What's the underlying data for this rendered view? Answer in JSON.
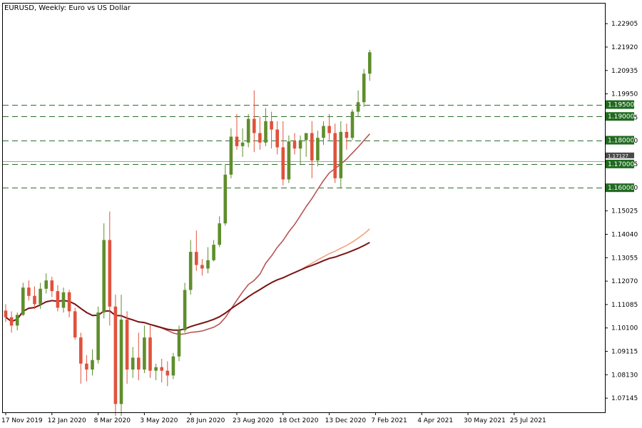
{
  "chart_title": "EURUSD, Weekly:  Euro vs US Dollar",
  "colors": {
    "bull": "#5e8e2c",
    "bear": "#e0523c",
    "ma_fast": "#b85454",
    "ma_slow": "#f2a37c",
    "ma_long": "#7a1414",
    "level_line": "#2d6e2d",
    "level_label_bg": "#1f6a1f",
    "price_label_bg": "#4a4a4a",
    "grid_frame": "#000000"
  },
  "chart_data": {
    "type": "candlestick",
    "title": "EURUSD, Weekly:  Euro vs US Dollar",
    "symbol": "EURUSD",
    "timeframe": "Weekly",
    "ylim": [
      1.0655,
      1.2375
    ],
    "y_ticks": [
      "1.22905",
      "1.21920",
      "1.20935",
      "1.19950",
      "1.18965",
      "1.17980",
      "1.16995",
      "1.16010",
      "1.15025",
      "1.14040",
      "1.13055",
      "1.12070",
      "1.11085",
      "1.10100",
      "1.09115",
      "1.08130",
      "1.07145"
    ],
    "x_ticks": [
      {
        "label": "17 Nov 2019",
        "bar": 0
      },
      {
        "label": "12 Jan 2020",
        "bar": 8
      },
      {
        "label": "8 Mar 2020",
        "bar": 16
      },
      {
        "label": "3 May 2020",
        "bar": 24
      },
      {
        "label": "28 Jun 2020",
        "bar": 32
      },
      {
        "label": "23 Aug 2020",
        "bar": 40
      },
      {
        "label": "18 Oct 2020",
        "bar": 48
      },
      {
        "label": "13 Dec 2020",
        "bar": 56
      },
      {
        "label": "7 Feb 2021",
        "bar": 64
      },
      {
        "label": "4 Apr 2021",
        "bar": 72
      },
      {
        "label": "30 May 2021",
        "bar": 80
      },
      {
        "label": "25 Jul 2021",
        "bar": 88
      }
    ],
    "levels": [
      {
        "value": 1.195,
        "label": "1.19500"
      },
      {
        "value": 1.19,
        "label": "1.19000"
      },
      {
        "value": 1.18,
        "label": "1.18000"
      },
      {
        "value": 1.17,
        "label": "1.17000"
      },
      {
        "value": 1.16,
        "label": "1.16000"
      }
    ],
    "current_price": {
      "value": 1.1712,
      "label": "1.17127"
    },
    "candles": [
      [
        1.1083,
        1.111,
        1.1035,
        1.1055
      ],
      [
        1.1055,
        1.108,
        1.099,
        1.102
      ],
      [
        1.102,
        1.1075,
        1.1,
        1.1065
      ],
      [
        1.1065,
        1.12,
        1.106,
        1.118
      ],
      [
        1.118,
        1.121,
        1.1125,
        1.1145
      ],
      [
        1.1145,
        1.1185,
        1.109,
        1.111
      ],
      [
        1.111,
        1.12,
        1.109,
        1.1175
      ],
      [
        1.1175,
        1.124,
        1.1155,
        1.121
      ],
      [
        1.121,
        1.1225,
        1.114,
        1.1165
      ],
      [
        1.1165,
        1.119,
        1.108,
        1.1095
      ],
      [
        1.1095,
        1.118,
        1.1075,
        1.116
      ],
      [
        1.116,
        1.117,
        1.1055,
        1.108
      ],
      [
        1.108,
        1.1095,
        1.096,
        1.097
      ],
      [
        1.097,
        1.099,
        1.0775,
        1.086
      ],
      [
        1.086,
        1.0895,
        1.0785,
        1.0835
      ],
      [
        1.0835,
        1.092,
        1.081,
        1.0875
      ],
      [
        1.0875,
        1.11,
        1.086,
        1.1075
      ],
      [
        1.1075,
        1.145,
        1.105,
        1.138
      ],
      [
        1.138,
        1.15,
        1.102,
        1.11
      ],
      [
        1.11,
        1.115,
        1.064,
        1.069
      ],
      [
        1.069,
        1.115,
        1.064,
        1.1045
      ],
      [
        1.1045,
        1.108,
        1.0775,
        1.0835
      ],
      [
        1.0835,
        1.093,
        1.08,
        1.0885
      ],
      [
        1.0885,
        1.099,
        1.079,
        1.0835
      ],
      [
        1.0835,
        1.102,
        1.082,
        1.097
      ],
      [
        1.097,
        1.102,
        1.08,
        1.083
      ],
      [
        1.083,
        1.086,
        1.079,
        1.0845
      ],
      [
        1.0845,
        1.088,
        1.078,
        1.083
      ],
      [
        1.083,
        1.087,
        1.0765,
        1.081
      ],
      [
        1.081,
        1.0905,
        1.0795,
        1.089
      ],
      [
        1.089,
        1.102,
        1.087,
        1.1
      ],
      [
        1.1,
        1.12,
        1.099,
        1.117
      ],
      [
        1.117,
        1.138,
        1.115,
        1.133
      ],
      [
        1.133,
        1.142,
        1.125,
        1.1275
      ],
      [
        1.1275,
        1.13,
        1.123,
        1.126
      ],
      [
        1.126,
        1.135,
        1.124,
        1.1295
      ],
      [
        1.1295,
        1.138,
        1.129,
        1.136
      ],
      [
        1.136,
        1.148,
        1.135,
        1.145
      ],
      [
        1.145,
        1.17,
        1.144,
        1.1655
      ],
      [
        1.1655,
        1.185,
        1.164,
        1.1815
      ],
      [
        1.1815,
        1.191,
        1.176,
        1.1775
      ],
      [
        1.1775,
        1.185,
        1.173,
        1.179
      ],
      [
        1.179,
        1.191,
        1.177,
        1.189
      ],
      [
        1.189,
        1.201,
        1.175,
        1.183
      ],
      [
        1.183,
        1.19,
        1.176,
        1.179
      ],
      [
        1.179,
        1.1935,
        1.1775,
        1.188
      ],
      [
        1.188,
        1.192,
        1.1765,
        1.1845
      ],
      [
        1.1845,
        1.188,
        1.174,
        1.177
      ],
      [
        1.177,
        1.188,
        1.161,
        1.1635
      ],
      [
        1.1635,
        1.182,
        1.162,
        1.1795
      ],
      [
        1.1795,
        1.183,
        1.174,
        1.1765
      ],
      [
        1.1765,
        1.182,
        1.17,
        1.18
      ],
      [
        1.18,
        1.183,
        1.173,
        1.183
      ],
      [
        1.183,
        1.188,
        1.164,
        1.1715
      ],
      [
        1.1715,
        1.184,
        1.169,
        1.181
      ],
      [
        1.181,
        1.188,
        1.178,
        1.186
      ],
      [
        1.186,
        1.191,
        1.18,
        1.183
      ],
      [
        1.183,
        1.187,
        1.162,
        1.164
      ],
      [
        1.164,
        1.188,
        1.16,
        1.1835
      ],
      [
        1.1835,
        1.187,
        1.176,
        1.181
      ],
      [
        1.181,
        1.193,
        1.18,
        1.192
      ],
      [
        1.192,
        1.201,
        1.19,
        1.196
      ],
      [
        1.196,
        1.21,
        1.194,
        1.208
      ],
      [
        1.208,
        1.218,
        1.205,
        1.217
      ]
    ]
  }
}
